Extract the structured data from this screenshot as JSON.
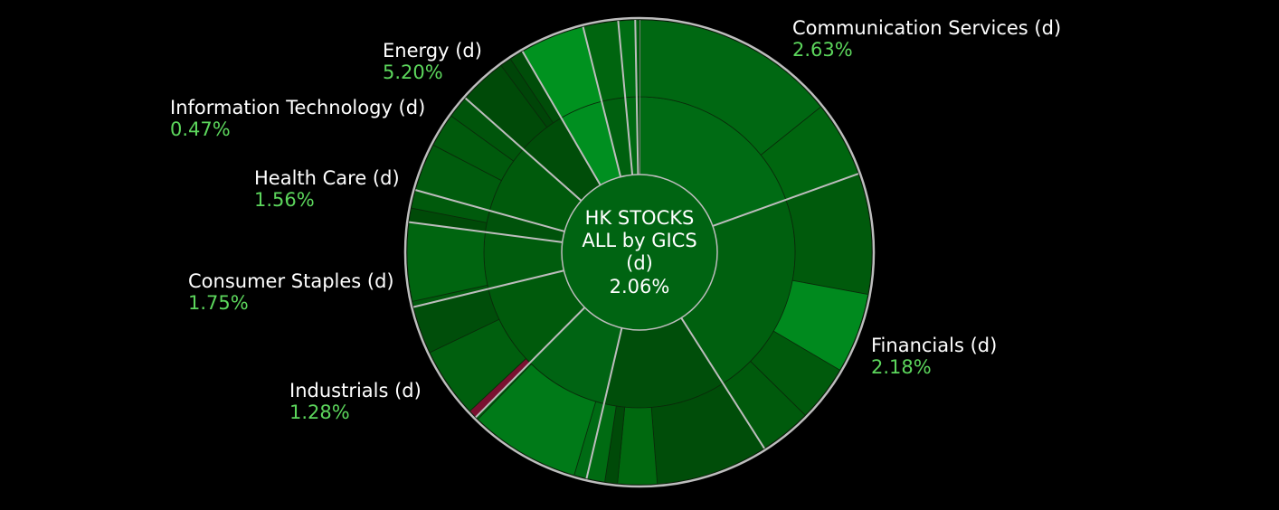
{
  "chart_data": {
    "type": "sunburst",
    "center": {
      "title_lines": [
        "HK STOCKS",
        "ALL by GICS",
        "(d)"
      ],
      "value": "2.06%",
      "value_num": 2.06
    },
    "colors": {
      "background": "#000000",
      "outline": "#bdbdbd",
      "positive_text": "#5cd65c",
      "negative_fill": "#7a1030"
    },
    "sectors": [
      {
        "name": "Communication Services (d)",
        "pct": "2.63%",
        "change": 2.63,
        "weight": 20.0,
        "color": "#006b14",
        "label_side": "right",
        "children": [
          {
            "weight": 14.6,
            "change": 2.5,
            "color": "#006812"
          },
          {
            "weight": 5.4,
            "change": 2.9,
            "color": "#00660f"
          }
        ]
      },
      {
        "name": "Financials (d)",
        "pct": "2.18%",
        "change": 2.18,
        "weight": 22.0,
        "color": "#00600f",
        "label_side": "right",
        "children": [
          {
            "weight": 8.6,
            "change": 2.3,
            "color": "#005a0c"
          },
          {
            "weight": 5.7,
            "change": 3.2,
            "color": "#008a1e"
          },
          {
            "weight": 4.0,
            "change": 1.6,
            "color": "#005a0c"
          },
          {
            "weight": 3.7,
            "change": 1.5,
            "color": "#005a0c"
          }
        ]
      },
      {
        "name": "",
        "pct": "",
        "change": 1.0,
        "weight": 13.0,
        "color": "#004e0a",
        "children": [
          {
            "weight": 8.0,
            "change": 1.0,
            "color": "#004d09"
          },
          {
            "weight": 2.8,
            "change": 1.7,
            "color": "#00690f"
          },
          {
            "weight": 0.9,
            "change": 0.9,
            "color": "#004a08"
          },
          {
            "weight": 1.3,
            "change": 2.6,
            "color": "#006b12"
          }
        ]
      },
      {
        "name": "",
        "pct": "",
        "change": 2.4,
        "weight": 9.0,
        "color": "#006413",
        "children": [
          {
            "weight": 0.9,
            "change": 2.2,
            "color": "#006b14"
          },
          {
            "weight": 7.9,
            "change": 2.6,
            "color": "#007a18"
          },
          {
            "weight": 0.2,
            "change": 1.8,
            "color": "#00600f"
          }
        ]
      },
      {
        "name": "Industrials (d)",
        "pct": "1.28%",
        "change": 1.28,
        "weight": 9.0,
        "color": "#005a0c",
        "label_side": "left",
        "children": [
          {
            "weight": 0.6,
            "change": -1.2,
            "color": "#7a1030"
          },
          {
            "weight": 5.0,
            "change": 1.6,
            "color": "#005f0e"
          },
          {
            "weight": 3.4,
            "change": 0.9,
            "color": "#004e0a"
          }
        ]
      },
      {
        "name": "Consumer Staples (d)",
        "pct": "1.75%",
        "change": 1.75,
        "weight": 6.0,
        "color": "#005c0d",
        "label_side": "left",
        "children": [
          {
            "weight": 0.4,
            "change": 1.5,
            "color": "#005a0c"
          },
          {
            "weight": 5.6,
            "change": 1.8,
            "color": "#006510"
          }
        ]
      },
      {
        "name": "",
        "pct": "",
        "change": 1.0,
        "weight": 2.3,
        "color": "#00520b",
        "children": [
          {
            "weight": 1.0,
            "change": 1.0,
            "color": "#004a08"
          },
          {
            "weight": 1.3,
            "change": 1.6,
            "color": "#005a0c"
          }
        ]
      },
      {
        "name": "Health Care (d)",
        "pct": "1.56%",
        "change": 1.56,
        "weight": 7.4,
        "color": "#005a0c",
        "label_side": "left",
        "children": [
          {
            "weight": 3.4,
            "change": 1.6,
            "color": "#005c0d"
          },
          {
            "weight": 2.4,
            "change": 1.6,
            "color": "#005a0c"
          },
          {
            "weight": 1.6,
            "change": 1.4,
            "color": "#00550b"
          }
        ]
      },
      {
        "name": "Information Technology (d)",
        "pct": "0.47%",
        "change": 0.47,
        "weight": 5.2,
        "color": "#004d09",
        "label_side": "left",
        "children": [
          {
            "weight": 3.4,
            "change": 0.4,
            "color": "#004a08"
          },
          {
            "weight": 0.8,
            "change": 0.3,
            "color": "#004508"
          },
          {
            "weight": 1.0,
            "change": 0.5,
            "color": "#004d09"
          }
        ]
      },
      {
        "name": "Energy (d)",
        "pct": "5.20%",
        "change": 5.2,
        "weight": 4.6,
        "color": "#008f20",
        "label_side": "left",
        "children": [
          {
            "weight": 4.6,
            "change": 5.2,
            "color": "#00921f"
          }
        ]
      },
      {
        "name": "",
        "pct": "",
        "change": 2.3,
        "weight": 2.5,
        "color": "#00600f",
        "children": [
          {
            "weight": 2.5,
            "change": 2.3,
            "color": "#00650f"
          }
        ]
      },
      {
        "name": "",
        "pct": "",
        "change": 2.6,
        "weight": 1.2,
        "color": "#006a12",
        "children": [
          {
            "weight": 1.2,
            "change": 2.6,
            "color": "#006d13"
          }
        ]
      },
      {
        "name": "",
        "pct": "",
        "change": 2.2,
        "weight": 0.3,
        "color": "#00600f",
        "children": [
          {
            "weight": 0.3,
            "change": 2.2,
            "color": "#00620f"
          }
        ]
      }
    ]
  }
}
